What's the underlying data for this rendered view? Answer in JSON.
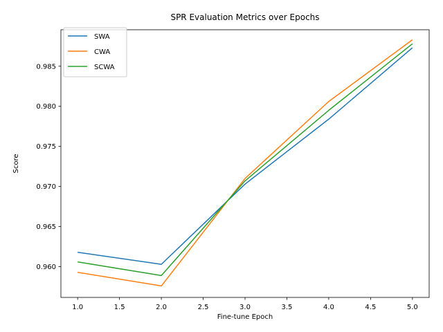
{
  "chart_data": {
    "type": "line",
    "title": "SPR Evaluation Metrics over Epochs",
    "xlabel": "Fine-tune Epoch",
    "ylabel": "Score",
    "x": [
      1,
      2,
      3,
      4,
      5
    ],
    "xlim": [
      0.8,
      5.2
    ],
    "ylim": [
      0.95617,
      0.98955
    ],
    "xticks": [
      "1.0",
      "1.5",
      "2.0",
      "2.5",
      "3.0",
      "3.5",
      "4.0",
      "4.5",
      "5.0"
    ],
    "xtick_values": [
      1.0,
      1.5,
      2.0,
      2.5,
      3.0,
      3.5,
      4.0,
      4.5,
      5.0
    ],
    "yticks": [
      "0.960",
      "0.965",
      "0.970",
      "0.975",
      "0.980",
      "0.985"
    ],
    "ytick_values": [
      0.96,
      0.965,
      0.97,
      0.975,
      0.98,
      0.985
    ],
    "grid": false,
    "legend_position": "top-left",
    "series": [
      {
        "name": "SWA",
        "color": "#1f77b4",
        "values": [
          0.9618,
          0.9603,
          0.9703,
          0.9784,
          0.9873
        ]
      },
      {
        "name": "CWA",
        "color": "#ff7f0e",
        "values": [
          0.9593,
          0.9576,
          0.971,
          0.9806,
          0.9883
        ]
      },
      {
        "name": "SCWA",
        "color": "#2ca02c",
        "values": [
          0.9606,
          0.9589,
          0.9707,
          0.9795,
          0.9878
        ]
      }
    ]
  }
}
